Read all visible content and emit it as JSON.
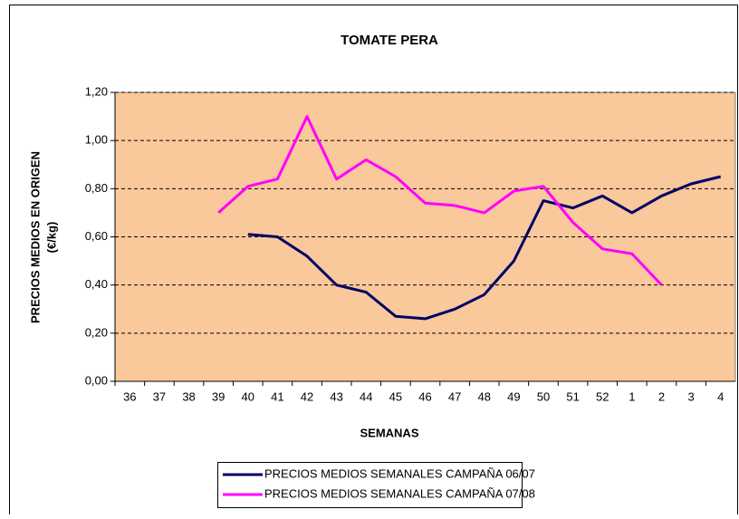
{
  "chart_data": {
    "type": "line",
    "title": "TOMATE PERA",
    "x_label": "SEMANAS",
    "y_label": [
      "PRECIOS MEDIOS EN ORIGEN",
      "(€/kg)"
    ],
    "categories": [
      "36",
      "37",
      "38",
      "39",
      "40",
      "41",
      "42",
      "43",
      "44",
      "45",
      "46",
      "47",
      "48",
      "49",
      "50",
      "51",
      "52",
      "1",
      "2",
      "3",
      "4"
    ],
    "series": [
      {
        "name": "PRECIOS MEDIOS SEMANALES CAMPAÑA 06/07",
        "color": "#000066",
        "values": [
          null,
          null,
          null,
          null,
          0.61,
          0.6,
          0.52,
          0.4,
          0.37,
          0.27,
          0.26,
          0.3,
          0.36,
          0.5,
          0.75,
          0.72,
          0.77,
          0.7,
          0.77,
          0.82,
          0.85
        ]
      },
      {
        "name": "PRECIOS MEDIOS SEMANALES CAMPAÑA 07/08",
        "color": "#ff00ff",
        "values": [
          null,
          null,
          null,
          0.7,
          0.81,
          0.84,
          1.1,
          0.84,
          0.92,
          0.85,
          0.74,
          0.73,
          0.7,
          0.79,
          0.81,
          0.66,
          0.55,
          0.53,
          0.4,
          null,
          null
        ]
      }
    ],
    "ylim": [
      0,
      1.2
    ],
    "yticks": [
      {
        "value": 0,
        "label": "0,00"
      },
      {
        "value": 0.2,
        "label": "0,20"
      },
      {
        "value": 0.4,
        "label": "0,40"
      },
      {
        "value": 0.6,
        "label": "0,60"
      },
      {
        "value": 0.8,
        "label": "0,80"
      },
      {
        "value": 1.0,
        "label": "1,00"
      },
      {
        "value": 1.2,
        "label": "1,20"
      }
    ],
    "grid": true,
    "plot_background": "#f9c89b",
    "legend": "bottom"
  }
}
